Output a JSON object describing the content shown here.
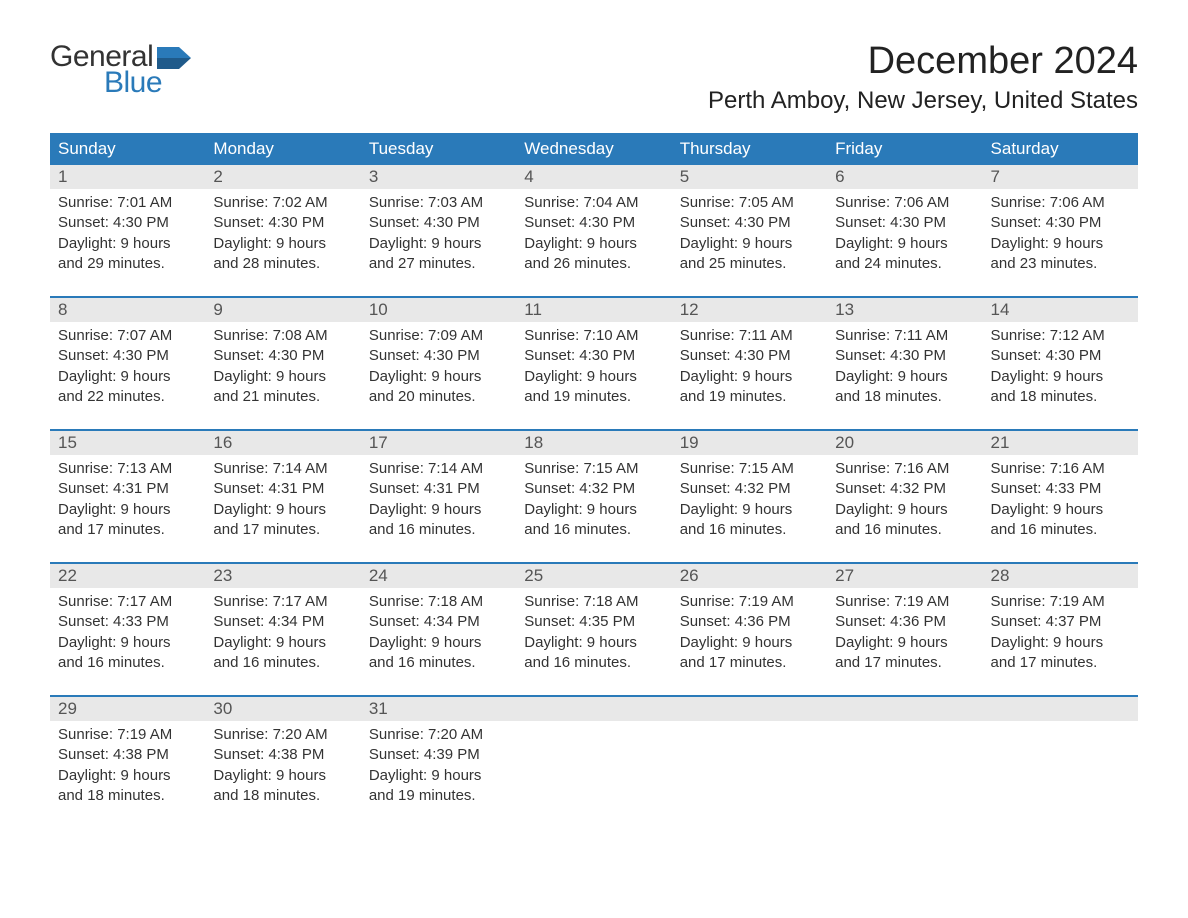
{
  "logo": {
    "word1": "General",
    "word2": "Blue",
    "flag_color": "#2a7ab9"
  },
  "title": "December 2024",
  "location": "Perth Amboy, New Jersey, United States",
  "colors": {
    "header_bg": "#2a7ab9",
    "header_text": "#ffffff",
    "daynum_bg": "#e8e8e8",
    "divider": "#2a7ab9",
    "text": "#333333",
    "background": "#ffffff"
  },
  "day_headers": [
    "Sunday",
    "Monday",
    "Tuesday",
    "Wednesday",
    "Thursday",
    "Friday",
    "Saturday"
  ],
  "weeks": [
    [
      {
        "num": "1",
        "sunrise": "Sunrise: 7:01 AM",
        "sunset": "Sunset: 4:30 PM",
        "dl1": "Daylight: 9 hours",
        "dl2": "and 29 minutes."
      },
      {
        "num": "2",
        "sunrise": "Sunrise: 7:02 AM",
        "sunset": "Sunset: 4:30 PM",
        "dl1": "Daylight: 9 hours",
        "dl2": "and 28 minutes."
      },
      {
        "num": "3",
        "sunrise": "Sunrise: 7:03 AM",
        "sunset": "Sunset: 4:30 PM",
        "dl1": "Daylight: 9 hours",
        "dl2": "and 27 minutes."
      },
      {
        "num": "4",
        "sunrise": "Sunrise: 7:04 AM",
        "sunset": "Sunset: 4:30 PM",
        "dl1": "Daylight: 9 hours",
        "dl2": "and 26 minutes."
      },
      {
        "num": "5",
        "sunrise": "Sunrise: 7:05 AM",
        "sunset": "Sunset: 4:30 PM",
        "dl1": "Daylight: 9 hours",
        "dl2": "and 25 minutes."
      },
      {
        "num": "6",
        "sunrise": "Sunrise: 7:06 AM",
        "sunset": "Sunset: 4:30 PM",
        "dl1": "Daylight: 9 hours",
        "dl2": "and 24 minutes."
      },
      {
        "num": "7",
        "sunrise": "Sunrise: 7:06 AM",
        "sunset": "Sunset: 4:30 PM",
        "dl1": "Daylight: 9 hours",
        "dl2": "and 23 minutes."
      }
    ],
    [
      {
        "num": "8",
        "sunrise": "Sunrise: 7:07 AM",
        "sunset": "Sunset: 4:30 PM",
        "dl1": "Daylight: 9 hours",
        "dl2": "and 22 minutes."
      },
      {
        "num": "9",
        "sunrise": "Sunrise: 7:08 AM",
        "sunset": "Sunset: 4:30 PM",
        "dl1": "Daylight: 9 hours",
        "dl2": "and 21 minutes."
      },
      {
        "num": "10",
        "sunrise": "Sunrise: 7:09 AM",
        "sunset": "Sunset: 4:30 PM",
        "dl1": "Daylight: 9 hours",
        "dl2": "and 20 minutes."
      },
      {
        "num": "11",
        "sunrise": "Sunrise: 7:10 AM",
        "sunset": "Sunset: 4:30 PM",
        "dl1": "Daylight: 9 hours",
        "dl2": "and 19 minutes."
      },
      {
        "num": "12",
        "sunrise": "Sunrise: 7:11 AM",
        "sunset": "Sunset: 4:30 PM",
        "dl1": "Daylight: 9 hours",
        "dl2": "and 19 minutes."
      },
      {
        "num": "13",
        "sunrise": "Sunrise: 7:11 AM",
        "sunset": "Sunset: 4:30 PM",
        "dl1": "Daylight: 9 hours",
        "dl2": "and 18 minutes."
      },
      {
        "num": "14",
        "sunrise": "Sunrise: 7:12 AM",
        "sunset": "Sunset: 4:30 PM",
        "dl1": "Daylight: 9 hours",
        "dl2": "and 18 minutes."
      }
    ],
    [
      {
        "num": "15",
        "sunrise": "Sunrise: 7:13 AM",
        "sunset": "Sunset: 4:31 PM",
        "dl1": "Daylight: 9 hours",
        "dl2": "and 17 minutes."
      },
      {
        "num": "16",
        "sunrise": "Sunrise: 7:14 AM",
        "sunset": "Sunset: 4:31 PM",
        "dl1": "Daylight: 9 hours",
        "dl2": "and 17 minutes."
      },
      {
        "num": "17",
        "sunrise": "Sunrise: 7:14 AM",
        "sunset": "Sunset: 4:31 PM",
        "dl1": "Daylight: 9 hours",
        "dl2": "and 16 minutes."
      },
      {
        "num": "18",
        "sunrise": "Sunrise: 7:15 AM",
        "sunset": "Sunset: 4:32 PM",
        "dl1": "Daylight: 9 hours",
        "dl2": "and 16 minutes."
      },
      {
        "num": "19",
        "sunrise": "Sunrise: 7:15 AM",
        "sunset": "Sunset: 4:32 PM",
        "dl1": "Daylight: 9 hours",
        "dl2": "and 16 minutes."
      },
      {
        "num": "20",
        "sunrise": "Sunrise: 7:16 AM",
        "sunset": "Sunset: 4:32 PM",
        "dl1": "Daylight: 9 hours",
        "dl2": "and 16 minutes."
      },
      {
        "num": "21",
        "sunrise": "Sunrise: 7:16 AM",
        "sunset": "Sunset: 4:33 PM",
        "dl1": "Daylight: 9 hours",
        "dl2": "and 16 minutes."
      }
    ],
    [
      {
        "num": "22",
        "sunrise": "Sunrise: 7:17 AM",
        "sunset": "Sunset: 4:33 PM",
        "dl1": "Daylight: 9 hours",
        "dl2": "and 16 minutes."
      },
      {
        "num": "23",
        "sunrise": "Sunrise: 7:17 AM",
        "sunset": "Sunset: 4:34 PM",
        "dl1": "Daylight: 9 hours",
        "dl2": "and 16 minutes."
      },
      {
        "num": "24",
        "sunrise": "Sunrise: 7:18 AM",
        "sunset": "Sunset: 4:34 PM",
        "dl1": "Daylight: 9 hours",
        "dl2": "and 16 minutes."
      },
      {
        "num": "25",
        "sunrise": "Sunrise: 7:18 AM",
        "sunset": "Sunset: 4:35 PM",
        "dl1": "Daylight: 9 hours",
        "dl2": "and 16 minutes."
      },
      {
        "num": "26",
        "sunrise": "Sunrise: 7:19 AM",
        "sunset": "Sunset: 4:36 PM",
        "dl1": "Daylight: 9 hours",
        "dl2": "and 17 minutes."
      },
      {
        "num": "27",
        "sunrise": "Sunrise: 7:19 AM",
        "sunset": "Sunset: 4:36 PM",
        "dl1": "Daylight: 9 hours",
        "dl2": "and 17 minutes."
      },
      {
        "num": "28",
        "sunrise": "Sunrise: 7:19 AM",
        "sunset": "Sunset: 4:37 PM",
        "dl1": "Daylight: 9 hours",
        "dl2": "and 17 minutes."
      }
    ],
    [
      {
        "num": "29",
        "sunrise": "Sunrise: 7:19 AM",
        "sunset": "Sunset: 4:38 PM",
        "dl1": "Daylight: 9 hours",
        "dl2": "and 18 minutes."
      },
      {
        "num": "30",
        "sunrise": "Sunrise: 7:20 AM",
        "sunset": "Sunset: 4:38 PM",
        "dl1": "Daylight: 9 hours",
        "dl2": "and 18 minutes."
      },
      {
        "num": "31",
        "sunrise": "Sunrise: 7:20 AM",
        "sunset": "Sunset: 4:39 PM",
        "dl1": "Daylight: 9 hours",
        "dl2": "and 19 minutes."
      },
      {
        "num": "",
        "sunrise": "",
        "sunset": "",
        "dl1": "",
        "dl2": ""
      },
      {
        "num": "",
        "sunrise": "",
        "sunset": "",
        "dl1": "",
        "dl2": ""
      },
      {
        "num": "",
        "sunrise": "",
        "sunset": "",
        "dl1": "",
        "dl2": ""
      },
      {
        "num": "",
        "sunrise": "",
        "sunset": "",
        "dl1": "",
        "dl2": ""
      }
    ]
  ]
}
